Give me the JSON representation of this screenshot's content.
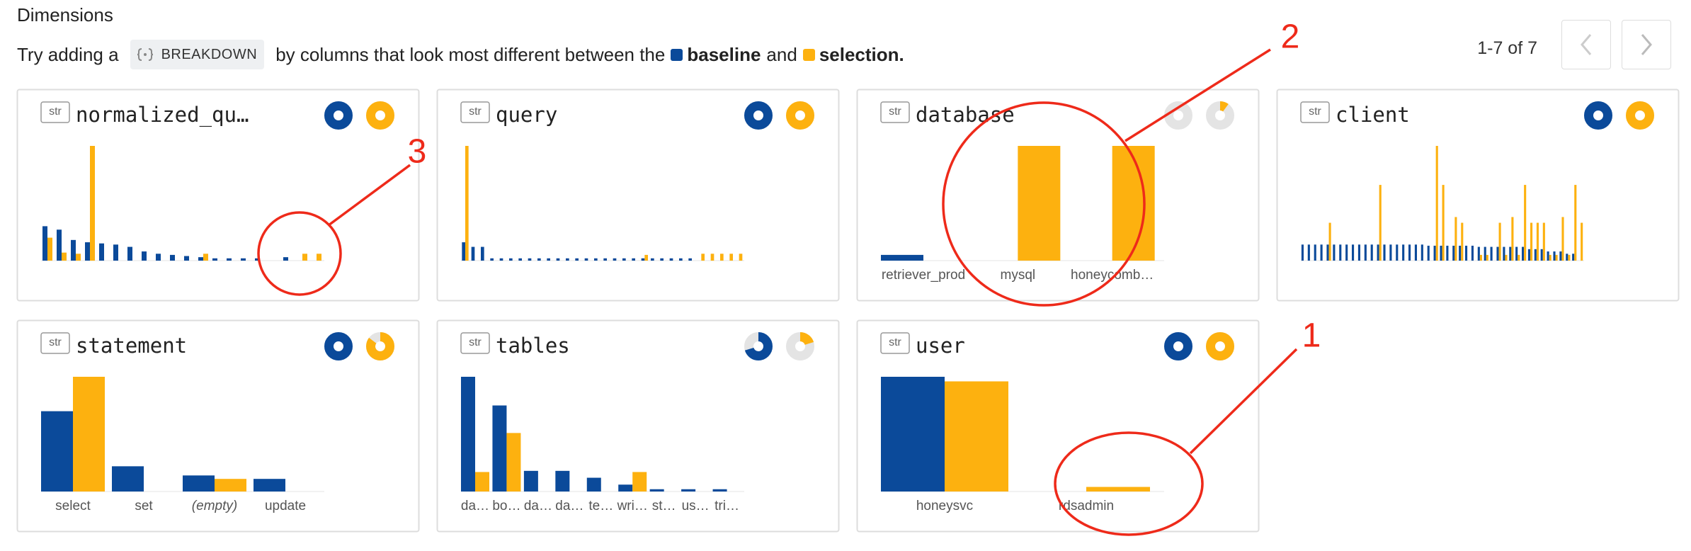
{
  "header": {
    "title": "Dimensions",
    "hint_prefix": "Try adding a",
    "breakdown": "BREAKDOWN",
    "hint_middle": "by columns that look most different between the",
    "baseline": "baseline",
    "and": "and",
    "selection": "selection.",
    "pagination": "1-7 of 7"
  },
  "colors": {
    "baseline": "#0b4a9a",
    "selection": "#fdb10f"
  },
  "cards": [
    {
      "badge": "str",
      "name": "normalized_qu…",
      "coverage": {
        "baseline": 100,
        "selection": 100
      },
      "categories": [
        null,
        null,
        null,
        null,
        null,
        null,
        null,
        null,
        null,
        null,
        null,
        null,
        null,
        null,
        null,
        null,
        null,
        null,
        null,
        null
      ],
      "baseline": [
        30,
        27,
        18,
        16,
        15,
        14,
        12,
        8,
        6,
        5,
        4,
        3,
        2,
        2,
        2,
        2,
        0,
        3,
        0,
        0
      ],
      "selection": [
        20,
        7,
        6,
        100,
        0,
        0,
        0,
        0,
        0,
        0,
        0,
        6,
        0,
        0,
        0,
        0,
        0,
        0,
        6,
        6
      ]
    },
    {
      "badge": "str",
      "name": "query",
      "coverage": {
        "baseline": 100,
        "selection": 100
      },
      "categories": [
        null,
        null,
        null,
        null,
        null,
        null,
        null,
        null,
        null,
        null,
        null,
        null,
        null,
        null,
        null,
        null,
        null,
        null,
        null,
        null,
        null,
        null,
        null,
        null,
        null,
        null,
        null,
        null,
        null,
        null
      ],
      "baseline": [
        16,
        12,
        12,
        2,
        2,
        2,
        2,
        2,
        2,
        2,
        2,
        2,
        2,
        2,
        2,
        2,
        2,
        2,
        2,
        2,
        2,
        2,
        2,
        2,
        2,
        0,
        0,
        0,
        0,
        0
      ],
      "selection": [
        100,
        0,
        0,
        0,
        0,
        0,
        0,
        0,
        0,
        0,
        0,
        0,
        0,
        0,
        0,
        0,
        0,
        0,
        0,
        5,
        0,
        0,
        0,
        0,
        0,
        6,
        6,
        6,
        6,
        6
      ]
    },
    {
      "badge": "str",
      "name": "database",
      "coverage": {
        "baseline": 0,
        "selection": 10
      },
      "categories": [
        "retriever_prod",
        "mysql",
        "honeycomb…"
      ],
      "baseline": [
        5,
        0,
        0
      ],
      "selection": [
        0,
        100,
        100
      ]
    },
    {
      "badge": "str",
      "name": "client",
      "coverage": {
        "baseline": 100,
        "selection": 100
      },
      "categories": [
        null,
        null,
        null,
        null,
        null,
        null,
        null,
        null,
        null,
        null,
        null,
        null,
        null,
        null,
        null,
        null,
        null,
        null,
        null,
        null,
        null,
        null,
        null,
        null,
        null,
        null,
        null,
        null,
        null,
        null,
        null,
        null,
        null,
        null,
        null,
        null,
        null,
        null,
        null,
        null,
        null,
        null,
        null,
        null,
        null
      ],
      "baseline": [
        14,
        14,
        14,
        14,
        14,
        14,
        14,
        14,
        14,
        14,
        14,
        14,
        14,
        14,
        14,
        14,
        14,
        14,
        14,
        14,
        13,
        13,
        13,
        13,
        13,
        13,
        13,
        13,
        12,
        12,
        12,
        12,
        12,
        12,
        12,
        12,
        10,
        10,
        10,
        8,
        8,
        8,
        6,
        6,
        0
      ],
      "selection": [
        0,
        0,
        0,
        0,
        33,
        0,
        0,
        0,
        0,
        0,
        0,
        0,
        66,
        0,
        0,
        0,
        0,
        0,
        0,
        0,
        0,
        100,
        66,
        0,
        38,
        33,
        0,
        0,
        5,
        5,
        0,
        33,
        5,
        38,
        5,
        66,
        33,
        33,
        33,
        5,
        5,
        38,
        5,
        66,
        33
      ]
    },
    {
      "badge": "str",
      "name": "statement",
      "coverage": {
        "baseline": 100,
        "selection": 85
      },
      "categories": [
        "select",
        "set",
        "(empty)",
        "update"
      ],
      "baseline": [
        70,
        22,
        14,
        11
      ],
      "selection": [
        100,
        0,
        11,
        0
      ]
    },
    {
      "badge": "str",
      "name": "tables",
      "coverage": {
        "baseline": 70,
        "selection": 20
      },
      "categories": [
        "da…",
        "bo…",
        "da…",
        "da…",
        "te…",
        "wri…",
        "st…",
        "us…",
        "tri…"
      ],
      "baseline": [
        100,
        75,
        18,
        18,
        12,
        6,
        2,
        2,
        2
      ],
      "selection": [
        17,
        51,
        0,
        0,
        0,
        17,
        0,
        0,
        0
      ]
    },
    {
      "badge": "str",
      "name": "user",
      "coverage": {
        "baseline": 100,
        "selection": 100
      },
      "categories": [
        "honeysvc",
        "rdsadmin"
      ],
      "baseline": [
        100,
        0
      ],
      "selection": [
        96,
        4
      ]
    }
  ],
  "annotations": [
    {
      "label": "1"
    },
    {
      "label": "2"
    },
    {
      "label": "3"
    }
  ]
}
